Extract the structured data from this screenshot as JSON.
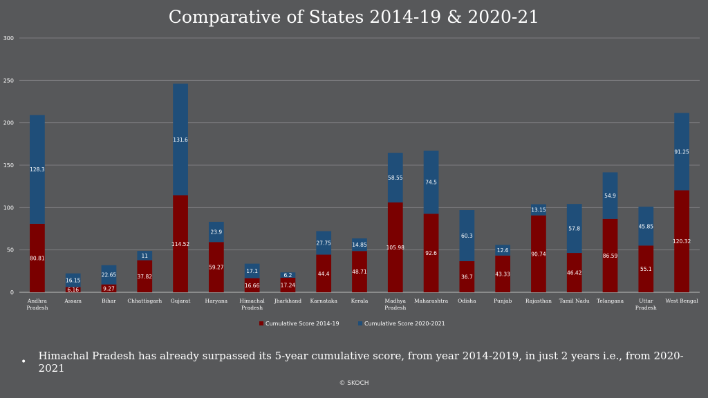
{
  "slide": {
    "title": "Comparative of States 2014-19 & 2020-21",
    "bullet_symbol": "•",
    "bullet_text": "Himachal Pradesh has already surpassed its 5-year cumulative score, from year 2014-2019, in just 2 years i.e., from 2020-2021",
    "footer": "© SKOCH"
  },
  "chart_data": {
    "type": "bar",
    "stacked": true,
    "categories": [
      [
        "Andhra",
        "Pradesh"
      ],
      [
        "Assam"
      ],
      [
        "Bihar"
      ],
      [
        "Chhattisgarh"
      ],
      [
        "Gujarat"
      ],
      [
        "Haryana"
      ],
      [
        "Himachal",
        "Pradesh"
      ],
      [
        "Jharkhand"
      ],
      [
        "Karnataka"
      ],
      [
        "Kerala"
      ],
      [
        "Madhya",
        "Pradesh"
      ],
      [
        "Maharashtra"
      ],
      [
        "Odisha"
      ],
      [
        "Punjab"
      ],
      [
        "Rajasthan"
      ],
      [
        "Tamil Nadu"
      ],
      [
        "Telangana"
      ],
      [
        "Uttar",
        "Pradesh"
      ],
      [
        "West Bengal"
      ]
    ],
    "series": [
      {
        "name": "Cumulative Score 2014-19",
        "color": "#7a0000",
        "values": [
          80.81,
          6.16,
          9.27,
          37.82,
          114.52,
          59.27,
          16.66,
          17.24,
          44.4,
          48.71,
          105.98,
          92.6,
          36.7,
          43.33,
          90.74,
          46.42,
          86.59,
          55.1,
          120.32
        ],
        "labels": [
          "80.81",
          "6.16",
          "9.27",
          "37.82",
          "114.52",
          "59.27",
          "16.66",
          "17.24",
          "44.4",
          "48.71",
          "105.98",
          "92.6",
          "36.7",
          "43.33",
          "90.74",
          "46.42",
          "86.59",
          "55.1",
          "120.32"
        ]
      },
      {
        "name": "Cumulative Score 2020-2021",
        "color": "#1f4e79",
        "values": [
          128.3,
          16.15,
          22.65,
          11,
          131.6,
          23.9,
          17.1,
          6.2,
          27.75,
          14.85,
          58.55,
          74.5,
          60.3,
          12.6,
          13.15,
          57.8,
          54.9,
          45.85,
          91.25
        ],
        "labels": [
          "128.3",
          "16.15",
          "22.65",
          "11",
          "131.6",
          "23.9",
          "17.1",
          "6.2",
          "27.75",
          "14.85",
          "58.55",
          "74.5",
          "60.3",
          "12.6",
          "13.15",
          "57.8",
          "54.9",
          "45.85",
          "91.25"
        ]
      }
    ],
    "ylim": [
      0,
      300
    ],
    "yticks": [
      0,
      50,
      100,
      150,
      200,
      250,
      300
    ],
    "grid": true,
    "legend_position": "bottom"
  }
}
